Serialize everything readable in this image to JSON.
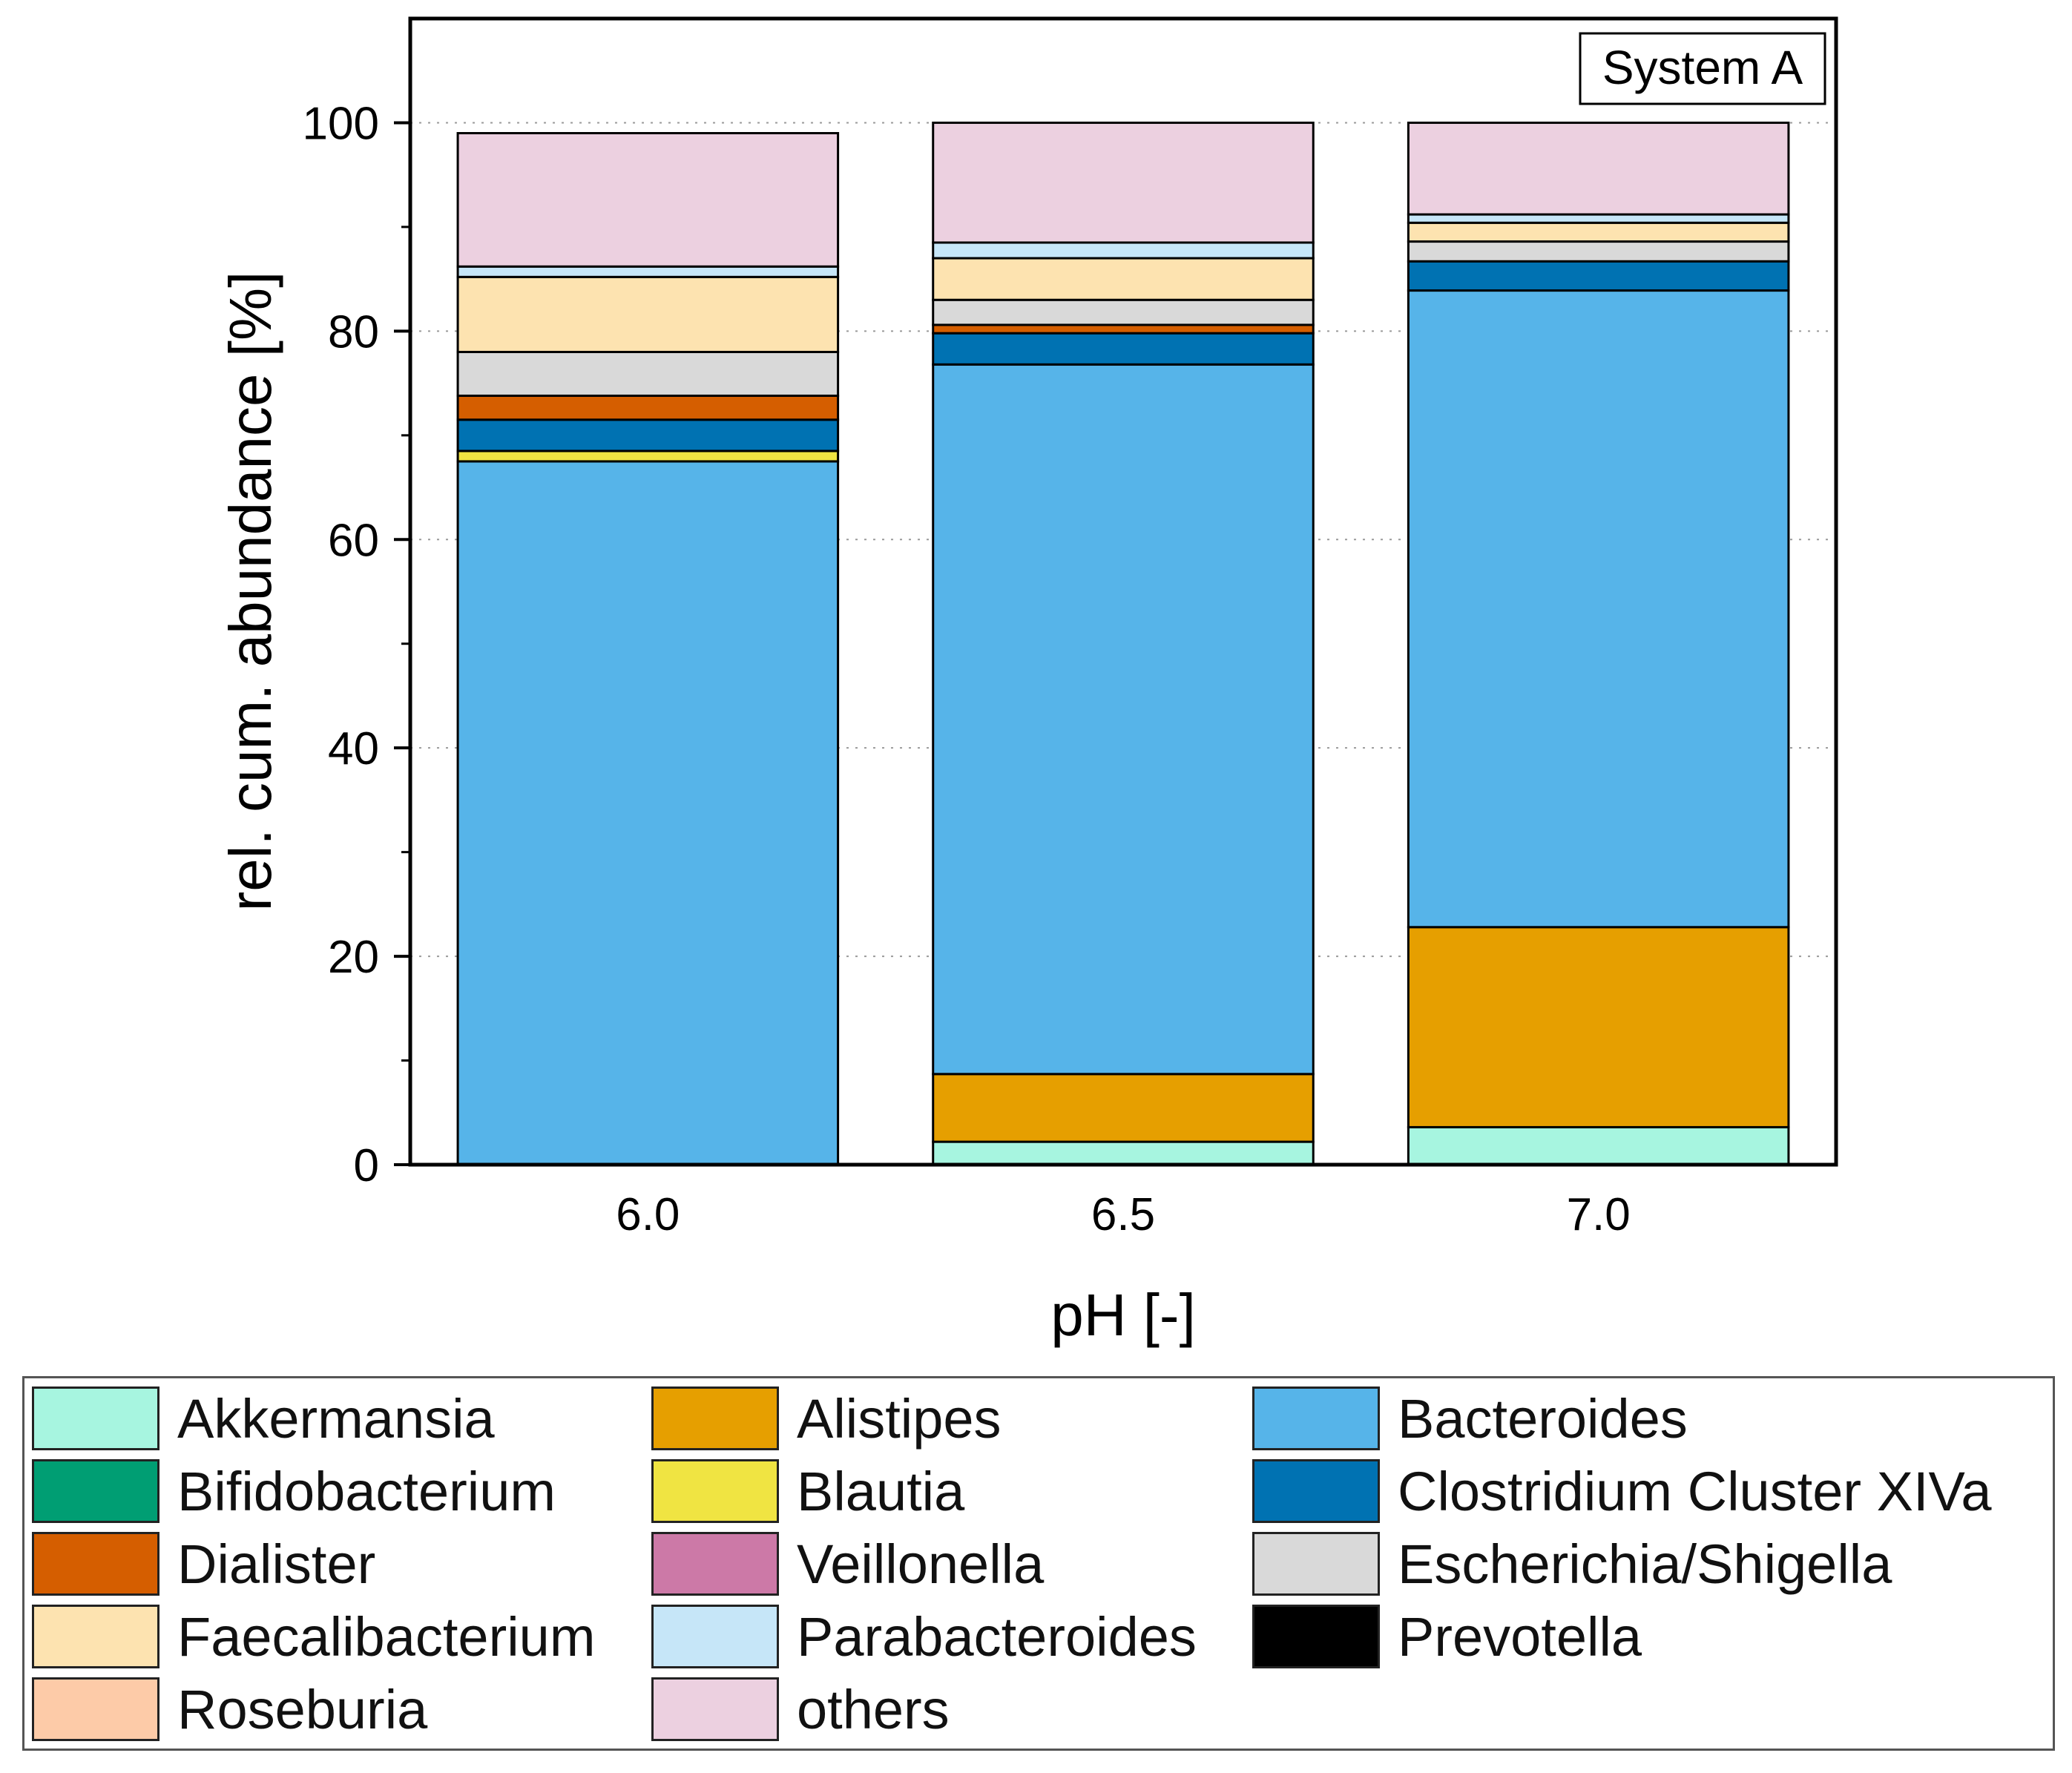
{
  "chart_data": {
    "type": "bar",
    "stacked": true,
    "title": "",
    "annotation": "System A",
    "xlabel": "pH [-]",
    "ylabel": "rel. cum. abundance [%]",
    "ylim": [
      0,
      110
    ],
    "yticks": [
      0,
      20,
      40,
      60,
      80,
      100
    ],
    "grid": "dotted horizontal at major ticks",
    "categories": [
      "6.0",
      "6.5",
      "7.0"
    ],
    "legend_position": "bottom",
    "series": [
      {
        "name": "Akkermansia",
        "color": "#a7f5e0",
        "values": [
          0.0,
          2.2,
          3.6
        ]
      },
      {
        "name": "Alistipes",
        "color": "#e69f00",
        "values": [
          0.0,
          6.5,
          19.2
        ]
      },
      {
        "name": "Bacteroides",
        "color": "#56b4e9",
        "values": [
          67.5,
          68.1,
          61.1
        ]
      },
      {
        "name": "Bifidobacterium",
        "color": "#009e73",
        "values": [
          0.0,
          0.0,
          0.0
        ]
      },
      {
        "name": "Blautia",
        "color": "#f0e442",
        "values": [
          1.0,
          0.0,
          0.0
        ]
      },
      {
        "name": "Clostridium Cluster XIVa",
        "color": "#0072b2",
        "values": [
          3.0,
          3.0,
          2.8
        ]
      },
      {
        "name": "Dialister",
        "color": "#d55e00",
        "values": [
          2.3,
          0.8,
          0.0
        ]
      },
      {
        "name": "Veillonella",
        "color": "#cc79a7",
        "values": [
          0.0,
          0.0,
          0.0
        ]
      },
      {
        "name": "Escherichia/Shigella",
        "color": "#d9d9d9",
        "values": [
          4.2,
          2.4,
          1.9
        ]
      },
      {
        "name": "Faecalibacterium",
        "color": "#fde3b0",
        "values": [
          7.2,
          4.0,
          1.8
        ]
      },
      {
        "name": "Parabacteroides",
        "color": "#c6e6f8",
        "values": [
          1.0,
          1.5,
          0.8
        ]
      },
      {
        "name": "Prevotella",
        "color": "#000000",
        "values": [
          0.0,
          0.0,
          0.0
        ]
      },
      {
        "name": "Roseburia",
        "color": "#fdcba8",
        "values": [
          0.0,
          0.0,
          0.0
        ]
      },
      {
        "name": "others",
        "color": "#ecd0e0",
        "values": [
          12.8,
          11.5,
          8.8
        ]
      }
    ]
  },
  "legend": {
    "rows": [
      [
        "Akkermansia",
        "Alistipes",
        "Bacteroides"
      ],
      [
        "Bifidobacterium",
        "Blautia",
        "Clostridium Cluster XIVa"
      ],
      [
        "Dialister",
        "Veillonella",
        "Escherichia/Shigella"
      ],
      [
        "Faecalibacterium",
        "Parabacteroides",
        "Prevotella"
      ],
      [
        "Roseburia",
        "others"
      ]
    ]
  }
}
